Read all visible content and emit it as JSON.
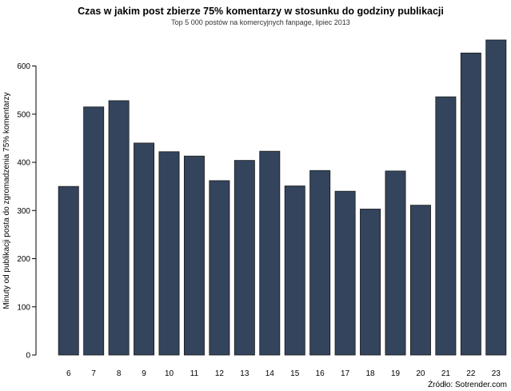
{
  "chart_data": {
    "type": "bar",
    "title": "Czas w jakim post zbierze 75% komentarzy w stosunku do godziny publikacji",
    "subtitle": "Top 5 000 postów na komercyjnych fanpage, lipiec 2013",
    "xlabel": "",
    "ylabel": "Minuty od publikacji posta do zgromadzenia 75% komentarzy",
    "source": "Źródło: Sotrender.com",
    "categories": [
      "6",
      "7",
      "8",
      "9",
      "10",
      "11",
      "12",
      "13",
      "14",
      "15",
      "16",
      "17",
      "18",
      "19",
      "20",
      "21",
      "22",
      "23"
    ],
    "values": [
      350,
      515,
      528,
      440,
      422,
      413,
      362,
      404,
      423,
      351,
      383,
      340,
      303,
      382,
      311,
      536,
      627,
      654
    ],
    "yticks": [
      0,
      100,
      200,
      300,
      400,
      500,
      600
    ],
    "ylim": [
      0,
      654
    ],
    "grid": false,
    "legend": "none",
    "colors": {
      "bar": "#33445c",
      "bar_edge": "#1a1a1a",
      "axis": "#000000"
    }
  }
}
